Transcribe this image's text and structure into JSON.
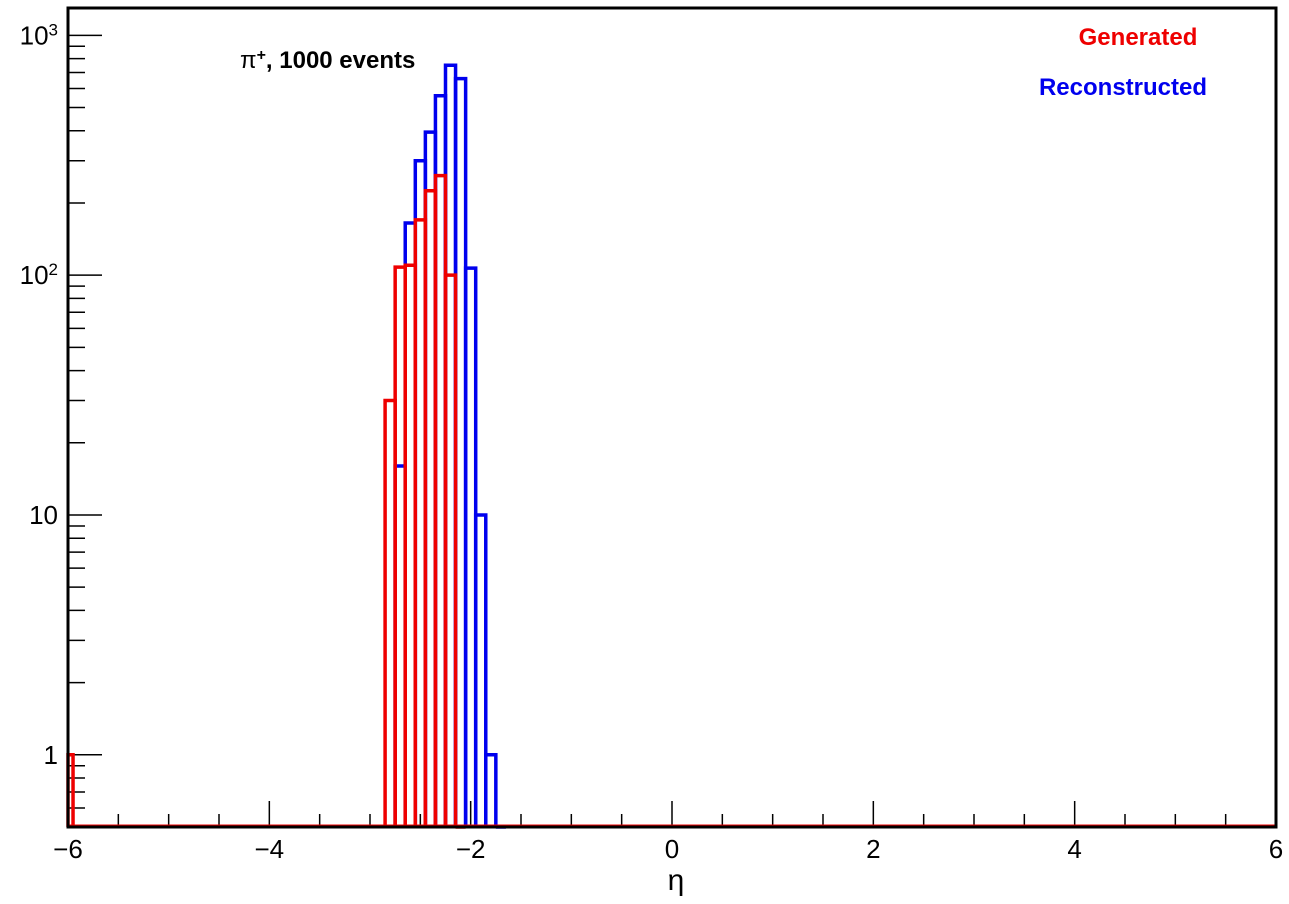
{
  "chart_data": {
    "type": "histogram",
    "xlabel": "η",
    "ylabel": "",
    "xlim": [
      -6,
      6
    ],
    "ylim": [
      0.5,
      1300
    ],
    "yscale": "log",
    "grid": false,
    "x_tick_labels": [
      "−6",
      "−4",
      "−2",
      "0",
      "2",
      "4",
      "6"
    ],
    "x_tick_values": [
      -6,
      -4,
      -2,
      0,
      2,
      4,
      6
    ],
    "y_tick_values": [
      1,
      10,
      100,
      1000
    ],
    "y_tick_labels": [
      {
        "base": "1",
        "exp": ""
      },
      {
        "base": "10",
        "exp": ""
      },
      {
        "base": "10",
        "exp": "2"
      },
      {
        "base": "10",
        "exp": "3"
      }
    ],
    "annotation": {
      "symbol": "π",
      "charge": "+",
      "text": ", 1000 events"
    },
    "legend": {
      "placement": "top-right"
    },
    "bin_width": 0.1,
    "series": [
      {
        "name": "Reconstructed",
        "color": "#0000ee",
        "bins": [
          {
            "x0": -2.75,
            "x1": -2.65,
            "value": 16
          },
          {
            "x0": -2.65,
            "x1": -2.55,
            "value": 165
          },
          {
            "x0": -2.55,
            "x1": -2.45,
            "value": 300
          },
          {
            "x0": -2.45,
            "x1": -2.35,
            "value": 395
          },
          {
            "x0": -2.35,
            "x1": -2.25,
            "value": 560
          },
          {
            "x0": -2.25,
            "x1": -2.15,
            "value": 750
          },
          {
            "x0": -2.15,
            "x1": -2.05,
            "value": 660
          },
          {
            "x0": -2.05,
            "x1": -1.95,
            "value": 107
          },
          {
            "x0": -1.95,
            "x1": -1.85,
            "value": 10
          },
          {
            "x0": -1.85,
            "x1": -1.75,
            "value": 1
          },
          {
            "x0": -1.75,
            "x1": -1.65,
            "value": 0
          }
        ]
      },
      {
        "name": "Generated",
        "color": "#ee0000",
        "bins": [
          {
            "x0": -6.0,
            "x1": -5.95,
            "value": 1
          },
          {
            "x0": -2.85,
            "x1": -2.75,
            "value": 30
          },
          {
            "x0": -2.75,
            "x1": -2.65,
            "value": 108
          },
          {
            "x0": -2.65,
            "x1": -2.55,
            "value": 110
          },
          {
            "x0": -2.55,
            "x1": -2.45,
            "value": 170
          },
          {
            "x0": -2.45,
            "x1": -2.35,
            "value": 225
          },
          {
            "x0": -2.35,
            "x1": -2.25,
            "value": 260
          },
          {
            "x0": -2.25,
            "x1": -2.15,
            "value": 100
          },
          {
            "x0": -2.15,
            "x1": -2.05,
            "value": 0
          }
        ]
      }
    ]
  }
}
